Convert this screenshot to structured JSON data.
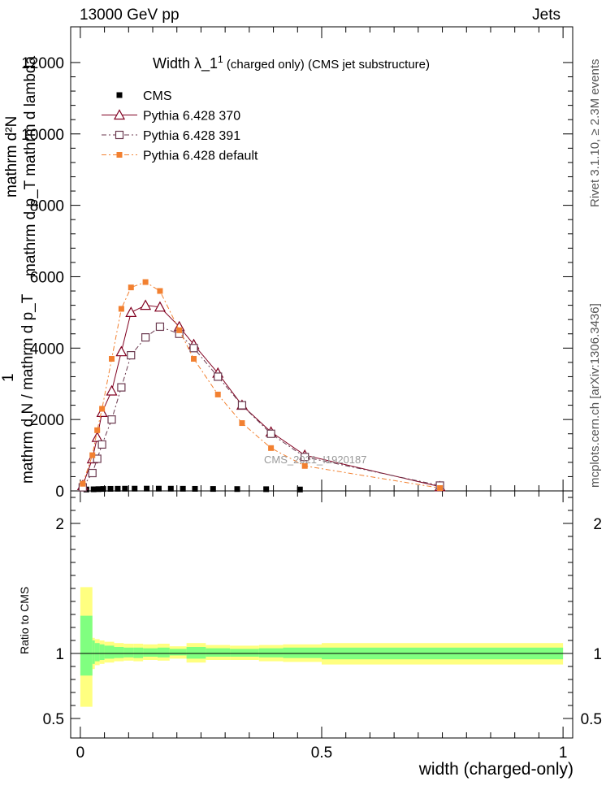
{
  "header": {
    "left": "13000 GeV pp",
    "right": "Jets"
  },
  "side": {
    "rivet": "Rivet 3.1.10, ≥ 2.3M events",
    "mcplots": "mcplots.cern.ch [arXiv:1306.3436]"
  },
  "title": {
    "main": "Width λ_1",
    "sup": "1",
    "sub": " (charged only) (CMS jet substructure)"
  },
  "watermark": "CMS_2021_I1920187",
  "main_ylabel": {
    "line1": "mathrm d²N",
    "line2": "mathrm d p_T mathrm d lambda",
    "line3": "1",
    "line4": "mathrm d N / mathrm d p_T"
  },
  "xlabel": "width (charged-only)",
  "ratio_ylabel": "Ratio to CMS",
  "colors": {
    "cms": "#000000",
    "p370": "#800020",
    "p391": "#6b3a4f",
    "pdef": "#f28030",
    "band_yellow": "#ffff80",
    "band_green": "#80ff80"
  },
  "legend": [
    {
      "label": "CMS",
      "marker": "filled-square"
    },
    {
      "label": "Pythia 6.428 370",
      "marker": "open-triangle"
    },
    {
      "label": "Pythia 6.428 391",
      "marker": "open-square"
    },
    {
      "label": "Pythia 6.428 default",
      "marker": "filled-square-orange"
    }
  ],
  "chart_data": [
    {
      "type": "line",
      "xlim": [
        -0.02,
        1.02
      ],
      "ylim": [
        0,
        13000
      ],
      "yticks": [
        0,
        2000,
        4000,
        6000,
        8000,
        10000,
        12000
      ],
      "ytick_labels": [
        "0",
        "2000",
        "4000",
        "6000",
        "8000",
        "10000",
        "12000"
      ],
      "series": [
        {
          "name": "CMS",
          "x": [
            0.0125,
            0.0275,
            0.0375,
            0.0475,
            0.0625,
            0.0775,
            0.0925,
            0.1125,
            0.1375,
            0.1625,
            0.1875,
            0.2125,
            0.2375,
            0.275,
            0.325,
            0.385,
            0.455
          ],
          "y": [
            40,
            45,
            50,
            55,
            58,
            60,
            62,
            63,
            64,
            63,
            62,
            60,
            58,
            55,
            52,
            48,
            40
          ]
        },
        {
          "name": "Pythia 6.428 370",
          "x": [
            0.005,
            0.025,
            0.035,
            0.045,
            0.065,
            0.085,
            0.105,
            0.135,
            0.165,
            0.205,
            0.235,
            0.285,
            0.335,
            0.395,
            0.465,
            0.745
          ],
          "y": [
            150,
            900,
            1500,
            2200,
            2800,
            3900,
            5000,
            5200,
            5150,
            4600,
            4100,
            3300,
            2400,
            1650,
            1000,
            120
          ]
        },
        {
          "name": "Pythia 6.428 391",
          "x": [
            0.005,
            0.025,
            0.035,
            0.045,
            0.065,
            0.085,
            0.105,
            0.135,
            0.165,
            0.205,
            0.235,
            0.285,
            0.335,
            0.395,
            0.465,
            0.745
          ],
          "y": [
            100,
            500,
            900,
            1300,
            2000,
            2900,
            3800,
            4300,
            4600,
            4400,
            4000,
            3200,
            2400,
            1600,
            950,
            150
          ]
        },
        {
          "name": "Pythia 6.428 default",
          "x": [
            0.005,
            0.025,
            0.035,
            0.045,
            0.065,
            0.085,
            0.105,
            0.135,
            0.165,
            0.205,
            0.235,
            0.285,
            0.335,
            0.395,
            0.465,
            0.745
          ],
          "y": [
            200,
            1000,
            1700,
            2300,
            3700,
            5100,
            5700,
            5850,
            5600,
            4500,
            3700,
            2700,
            1900,
            1200,
            700,
            80
          ]
        }
      ]
    },
    {
      "type": "area",
      "ylabel": "Ratio to CMS",
      "xlim": [
        -0.02,
        1.02
      ],
      "ylim": [
        0.35,
        2.25
      ],
      "yticks": [
        0.5,
        1,
        2
      ],
      "ytick_labels": [
        "0.5",
        "1",
        "2"
      ],
      "xticks": [
        0,
        0.5,
        1
      ],
      "xtick_labels": [
        "0",
        "0.5",
        "1"
      ],
      "bins": [
        {
          "x0": 0.0,
          "x1": 0.025,
          "g": [
            0.83,
            1.29
          ],
          "yl": [
            0.59,
            1.51
          ]
        },
        {
          "x0": 0.025,
          "x1": 0.03,
          "g": [
            0.92,
            1.1
          ],
          "yl": [
            0.88,
            1.12
          ]
        },
        {
          "x0": 0.03,
          "x1": 0.04,
          "g": [
            0.94,
            1.08
          ],
          "yl": [
            0.91,
            1.11
          ]
        },
        {
          "x0": 0.04,
          "x1": 0.05,
          "g": [
            0.95,
            1.07
          ],
          "yl": [
            0.92,
            1.1
          ]
        },
        {
          "x0": 0.05,
          "x1": 0.07,
          "g": [
            0.96,
            1.06
          ],
          "yl": [
            0.93,
            1.09
          ]
        },
        {
          "x0": 0.07,
          "x1": 0.09,
          "g": [
            0.965,
            1.05
          ],
          "yl": [
            0.94,
            1.08
          ]
        },
        {
          "x0": 0.09,
          "x1": 0.11,
          "g": [
            0.97,
            1.045
          ],
          "yl": [
            0.945,
            1.075
          ]
        },
        {
          "x0": 0.11,
          "x1": 0.13,
          "g": [
            0.965,
            1.045
          ],
          "yl": [
            0.94,
            1.075
          ]
        },
        {
          "x0": 0.13,
          "x1": 0.16,
          "g": [
            0.975,
            1.04
          ],
          "yl": [
            0.95,
            1.07
          ]
        },
        {
          "x0": 0.16,
          "x1": 0.185,
          "g": [
            0.97,
            1.045
          ],
          "yl": [
            0.945,
            1.075
          ]
        },
        {
          "x0": 0.185,
          "x1": 0.22,
          "g": [
            0.985,
            1.035
          ],
          "yl": [
            0.96,
            1.055
          ]
        },
        {
          "x0": 0.22,
          "x1": 0.26,
          "g": [
            0.96,
            1.05
          ],
          "yl": [
            0.93,
            1.08
          ]
        },
        {
          "x0": 0.26,
          "x1": 0.31,
          "g": [
            0.975,
            1.04
          ],
          "yl": [
            0.95,
            1.065
          ]
        },
        {
          "x0": 0.31,
          "x1": 0.37,
          "g": [
            0.975,
            1.035
          ],
          "yl": [
            0.95,
            1.06
          ]
        },
        {
          "x0": 0.37,
          "x1": 0.42,
          "g": [
            0.97,
            1.04
          ],
          "yl": [
            0.94,
            1.065
          ]
        },
        {
          "x0": 0.42,
          "x1": 0.5,
          "g": [
            0.965,
            1.045
          ],
          "yl": [
            0.935,
            1.07
          ]
        },
        {
          "x0": 0.5,
          "x1": 1.0,
          "g": [
            0.955,
            1.045
          ],
          "yl": [
            0.915,
            1.08
          ]
        }
      ]
    }
  ]
}
